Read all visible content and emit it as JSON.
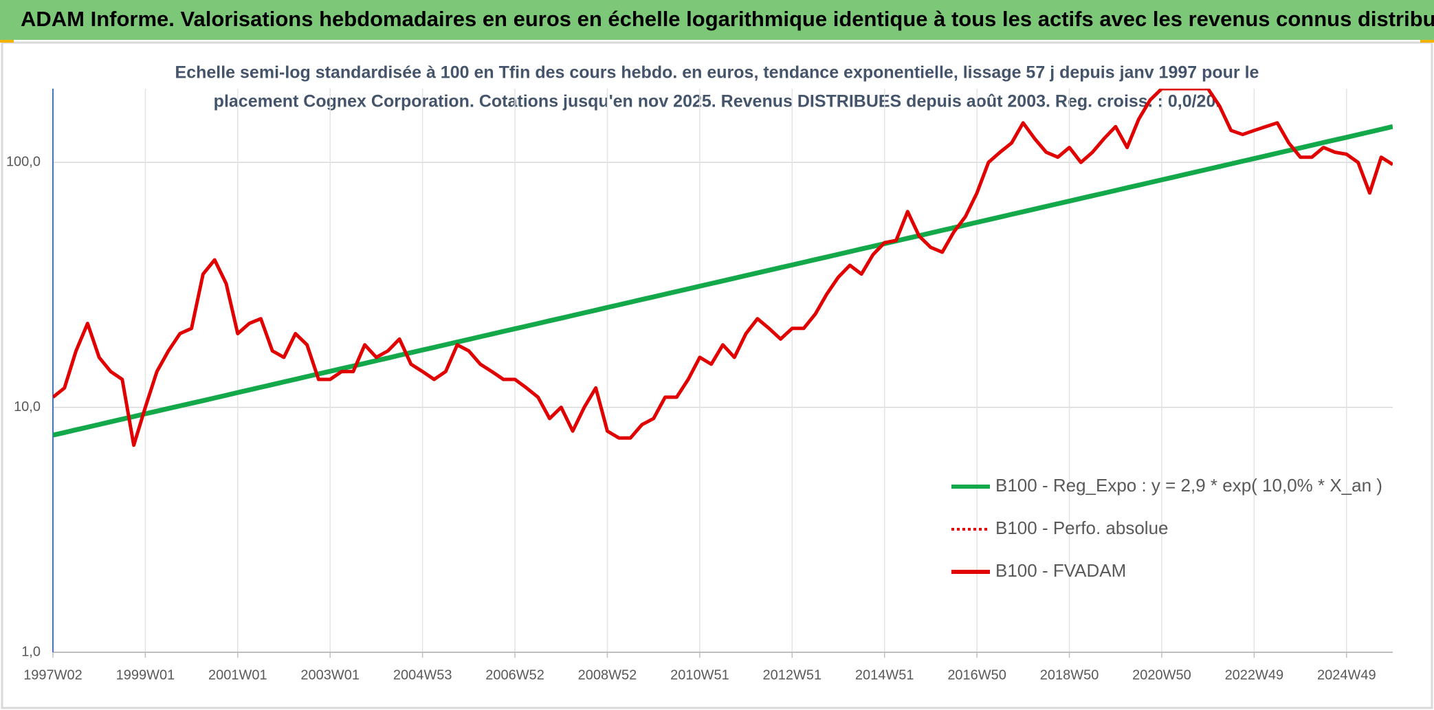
{
  "chart_data": {
    "type": "line",
    "title": "ADAM Informe. Valorisations hebdomadaires en euros en échelle logarithmique identique à tous les actifs avec les revenus connus distribués",
    "subtitle": [
      "Echelle semi-log standardisée à 100 en Tfin des cours hebdo. en euros, tendance exponentielle, lissage 57 j depuis janv 1997 pour le",
      "placement Cognex Corporation. Cotations jusqu'en nov 2025. Revenus DISTRIBUES depuis août 2003. Reg. croiss. : 0,0/20."
    ],
    "log_y": true,
    "grid": true,
    "legend": "lower right",
    "ylim": [
      1,
      200
    ],
    "yticks": [
      {
        "value": 1,
        "label": "1,0"
      },
      {
        "value": 10,
        "label": "10,0"
      },
      {
        "value": 100,
        "label": "100,0"
      }
    ],
    "categories": [
      "1997W02",
      null,
      null,
      null,
      null,
      null,
      null,
      null,
      "1999W01",
      null,
      null,
      null,
      null,
      null,
      null,
      null,
      "2001W01",
      null,
      null,
      null,
      null,
      null,
      null,
      null,
      "2003W01",
      null,
      null,
      null,
      null,
      null,
      null,
      null,
      "2004W53",
      null,
      null,
      null,
      null,
      null,
      null,
      null,
      "2006W52",
      null,
      null,
      null,
      null,
      null,
      null,
      null,
      "2008W52",
      null,
      null,
      null,
      null,
      null,
      null,
      null,
      "2010W51",
      null,
      null,
      null,
      null,
      null,
      null,
      null,
      "2012W51",
      null,
      null,
      null,
      null,
      null,
      null,
      null,
      "2014W51",
      null,
      null,
      null,
      null,
      null,
      null,
      null,
      "2016W50",
      null,
      null,
      null,
      null,
      null,
      null,
      null,
      "2018W50",
      null,
      null,
      null,
      null,
      null,
      null,
      null,
      "2020W50",
      null,
      null,
      null,
      null,
      null,
      null,
      null,
      "2022W49",
      null,
      null,
      null,
      null,
      null,
      null,
      null,
      "2024W49",
      null,
      null,
      null,
      null
    ],
    "series": [
      {
        "name": "B100 - Reg_Expo : y = 2,9 * exp( 10,0% *  X_an )",
        "color": "#13a84a",
        "dash": "solid",
        "values": [
          7.7,
          7.89,
          8.1,
          8.3,
          8.51,
          8.73,
          8.95,
          9.17,
          9.41,
          9.65,
          9.89,
          10.14,
          10.39,
          10.65,
          10.92,
          11.2,
          11.49,
          11.78,
          12.08,
          12.38,
          12.7,
          13.02,
          13.35,
          13.69,
          14.03,
          14.39,
          14.75,
          15.12,
          15.51,
          15.9,
          16.31,
          16.72,
          17.14,
          17.57,
          18.02,
          18.48,
          18.94,
          19.42,
          19.91,
          20.42,
          20.93,
          21.46,
          22.0,
          22.56,
          23.13,
          23.72,
          24.32,
          24.93,
          25.57,
          26.22,
          26.88,
          27.56,
          28.26,
          28.97,
          29.71,
          30.46,
          31.23,
          32.02,
          32.83,
          33.66,
          34.51,
          35.38,
          36.28,
          37.2,
          38.14,
          39.11,
          40.1,
          41.11,
          42.15,
          43.22,
          44.31,
          45.43,
          46.59,
          47.77,
          48.98,
          50.22,
          51.49,
          52.79,
          54.13,
          55.5,
          56.9,
          58.34,
          59.82,
          61.33,
          62.89,
          64.48,
          66.12,
          67.79,
          69.5,
          71.26,
          73.07,
          74.92,
          76.81,
          78.75,
          80.75,
          82.79,
          84.89,
          87.04,
          89.25,
          91.5,
          93.82,
          96.19,
          98.63,
          101.13,
          103.7,
          106.3,
          109.0,
          111.8,
          114.6,
          117.5,
          120.5,
          123.5,
          126.6,
          129.8,
          133.1,
          136.5,
          140.0
        ]
      },
      {
        "name": "B100 - Perfo. absolue",
        "color": "#e00000",
        "dash": "dotted"
      },
      {
        "name": "B100 - FVADAM",
        "color": "#e00000",
        "dash": "solid",
        "values": [
          11,
          12,
          17,
          22,
          16,
          14,
          13,
          7,
          10,
          14,
          17,
          20,
          21,
          35,
          40,
          32,
          20,
          22,
          23,
          17,
          16,
          20,
          18,
          13,
          13,
          14,
          14,
          18,
          16,
          17,
          19,
          15,
          14,
          13,
          14,
          18,
          17,
          15,
          14,
          13,
          13,
          12,
          11,
          9,
          10,
          8,
          10,
          12,
          8,
          7.5,
          7.5,
          8.5,
          9,
          11,
          11,
          13,
          16,
          15,
          18,
          16,
          20,
          23,
          21,
          19,
          21,
          21,
          24,
          29,
          34,
          38,
          35,
          42,
          47,
          48,
          63,
          50,
          45,
          43,
          52,
          60,
          75,
          100,
          110,
          120,
          145,
          125,
          110,
          105,
          115,
          100,
          110,
          125,
          140,
          115,
          150,
          180,
          200,
          200,
          200,
          200,
          200,
          170,
          135,
          130,
          135,
          140,
          145,
          120,
          105,
          105,
          115,
          110,
          108,
          100,
          75,
          105,
          98
        ]
      }
    ]
  }
}
